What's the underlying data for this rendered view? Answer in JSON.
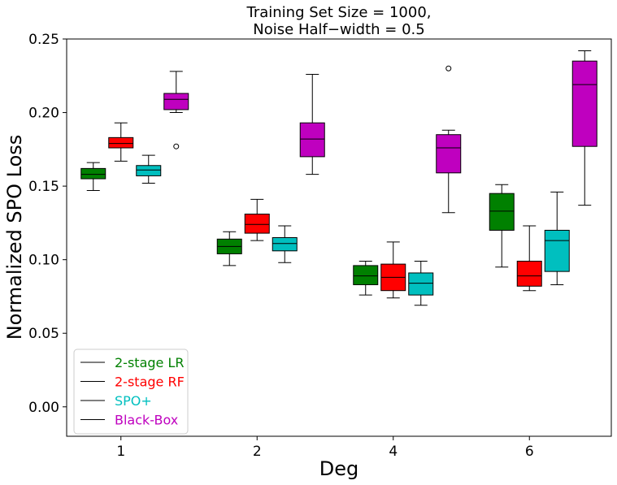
{
  "chart_data": {
    "type": "box",
    "title": "Training Set Size = 1000,\nNoise Half−width = 0.5",
    "title_lines": [
      "Training Set Size = 1000,",
      "Noise Half−width = 0.5"
    ],
    "xlabel": "Deg",
    "ylabel": "Normalized SPO Loss",
    "categories": [
      "1",
      "2",
      "4",
      "6"
    ],
    "ylim": [
      -0.02,
      0.25
    ],
    "yticks": [
      "0.00",
      "0.05",
      "0.10",
      "0.15",
      "0.20",
      "0.25"
    ],
    "ytick_values": [
      0.0,
      0.05,
      0.1,
      0.15,
      0.2,
      0.25
    ],
    "legend_position": "lower-left",
    "grid": false,
    "series": [
      {
        "name": "2-stage LR",
        "color": "#008000",
        "boxes": [
          {
            "whislo": 0.147,
            "q1": 0.155,
            "med": 0.158,
            "q3": 0.162,
            "whishi": 0.166,
            "fliers": []
          },
          {
            "whislo": 0.096,
            "q1": 0.104,
            "med": 0.109,
            "q3": 0.114,
            "whishi": 0.119,
            "fliers": []
          },
          {
            "whislo": 0.076,
            "q1": 0.083,
            "med": 0.089,
            "q3": 0.096,
            "whishi": 0.099,
            "fliers": []
          },
          {
            "whislo": 0.095,
            "q1": 0.12,
            "med": 0.133,
            "q3": 0.145,
            "whishi": 0.151,
            "fliers": []
          }
        ]
      },
      {
        "name": "2-stage RF",
        "color": "#ff0000",
        "boxes": [
          {
            "whislo": 0.167,
            "q1": 0.176,
            "med": 0.179,
            "q3": 0.183,
            "whishi": 0.193,
            "fliers": []
          },
          {
            "whislo": 0.113,
            "q1": 0.118,
            "med": 0.124,
            "q3": 0.131,
            "whishi": 0.141,
            "fliers": []
          },
          {
            "whislo": 0.074,
            "q1": 0.079,
            "med": 0.088,
            "q3": 0.097,
            "whishi": 0.112,
            "fliers": []
          },
          {
            "whislo": 0.079,
            "q1": 0.082,
            "med": 0.089,
            "q3": 0.099,
            "whishi": 0.123,
            "fliers": []
          }
        ]
      },
      {
        "name": "SPO+",
        "color": "#00bfbf",
        "boxes": [
          {
            "whislo": 0.152,
            "q1": 0.157,
            "med": 0.161,
            "q3": 0.164,
            "whishi": 0.171,
            "fliers": []
          },
          {
            "whislo": 0.098,
            "q1": 0.106,
            "med": 0.111,
            "q3": 0.115,
            "whishi": 0.123,
            "fliers": []
          },
          {
            "whislo": 0.069,
            "q1": 0.076,
            "med": 0.084,
            "q3": 0.091,
            "whishi": 0.099,
            "fliers": []
          },
          {
            "whislo": 0.083,
            "q1": 0.092,
            "med": 0.113,
            "q3": 0.12,
            "whishi": 0.146,
            "fliers": []
          }
        ]
      },
      {
        "name": "Black-Box",
        "color": "#bf00bf",
        "boxes": [
          {
            "whislo": 0.2,
            "q1": 0.202,
            "med": 0.209,
            "q3": 0.213,
            "whishi": 0.228,
            "fliers": [
              0.177
            ]
          },
          {
            "whislo": 0.158,
            "q1": 0.17,
            "med": 0.182,
            "q3": 0.193,
            "whishi": 0.226,
            "fliers": []
          },
          {
            "whislo": 0.132,
            "q1": 0.159,
            "med": 0.176,
            "q3": 0.185,
            "whishi": 0.188,
            "fliers": [
              0.23
            ]
          },
          {
            "whislo": 0.137,
            "q1": 0.177,
            "med": 0.219,
            "q3": 0.235,
            "whishi": 0.242,
            "fliers": []
          }
        ]
      }
    ]
  }
}
